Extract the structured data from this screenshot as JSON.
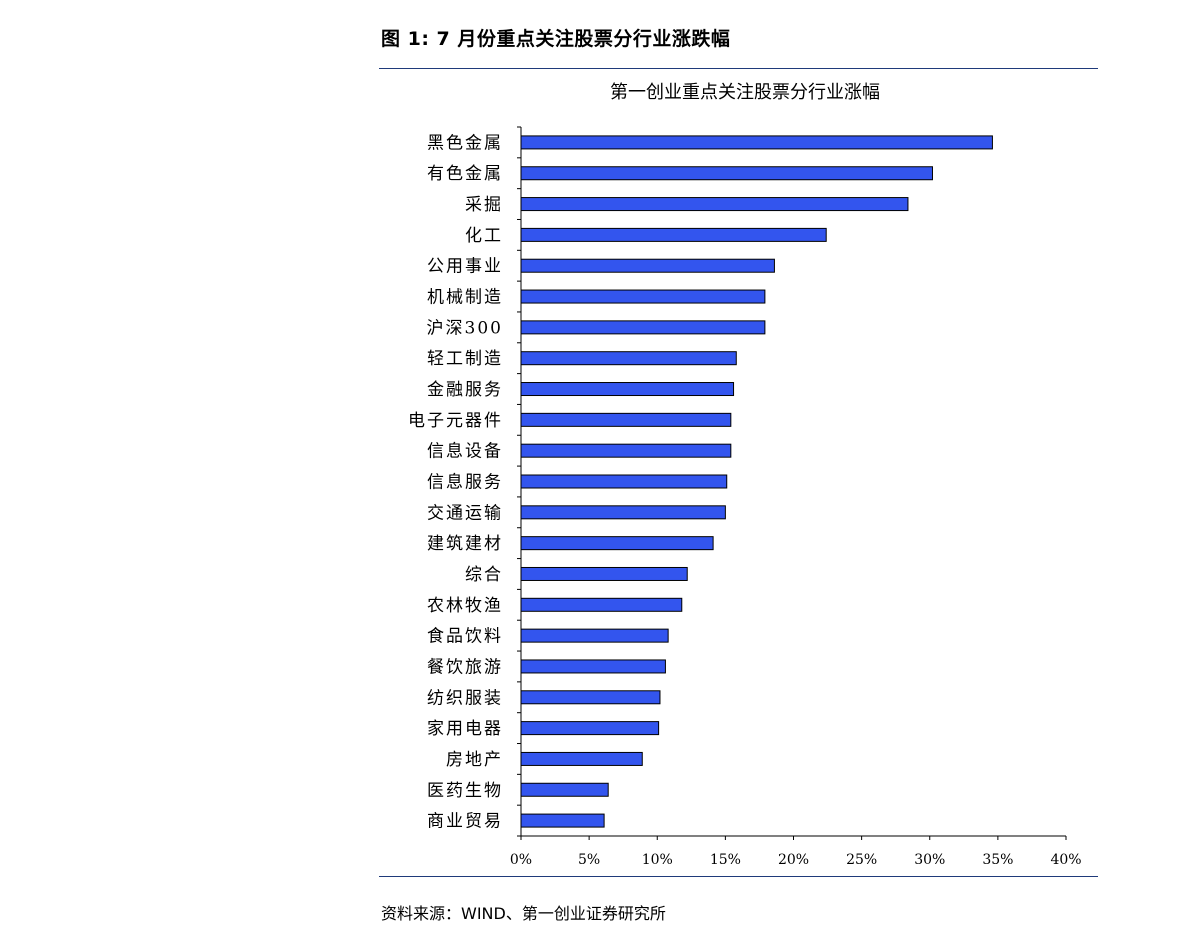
{
  "figure": {
    "title": "图 1:  7 月份重点关注股票分行业涨跌幅",
    "source": "资料来源：WIND、第一创业证券研究所"
  },
  "colors": {
    "bar": "#3355ee",
    "bar_border": "#000000",
    "rule": "#1f3a7a"
  },
  "chart_data": {
    "type": "bar",
    "orientation": "horizontal",
    "title": "第一创业重点关注股票分行业涨幅",
    "categories": [
      "黑色金属",
      "有色金属",
      "采掘",
      "化工",
      "公用事业",
      "机械制造",
      "沪深300",
      "轻工制造",
      "金融服务",
      "电子元器件",
      "信息设备",
      "信息服务",
      "交通运输",
      "建筑建材",
      "综合",
      "农林牧渔",
      "食品饮料",
      "餐饮旅游",
      "纺织服装",
      "家用电器",
      "房地产",
      "医药生物",
      "商业贸易"
    ],
    "values": [
      34.6,
      30.2,
      28.4,
      22.4,
      18.6,
      17.9,
      17.9,
      15.8,
      15.6,
      15.4,
      15.4,
      15.1,
      15.0,
      14.1,
      12.2,
      11.8,
      10.8,
      10.6,
      10.2,
      10.1,
      8.9,
      6.4,
      6.1
    ],
    "xlim": [
      0,
      40
    ],
    "xticks": [
      "0%",
      "5%",
      "10%",
      "15%",
      "20%",
      "25%",
      "30%",
      "35%",
      "40%"
    ],
    "xlabel": "",
    "ylabel": "",
    "grid": false,
    "legend": "none"
  }
}
